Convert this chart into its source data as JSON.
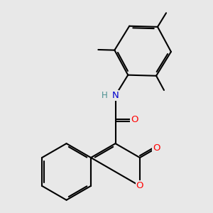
{
  "background_color": "#e8e8e8",
  "bond_color": "#000000",
  "bond_width": 1.5,
  "dbo": 0.055,
  "atom_colors": {
    "O": "#ff0000",
    "N": "#0000cd",
    "H": "#4a9090",
    "C": "#000000"
  },
  "font_size_atom": 9.5
}
